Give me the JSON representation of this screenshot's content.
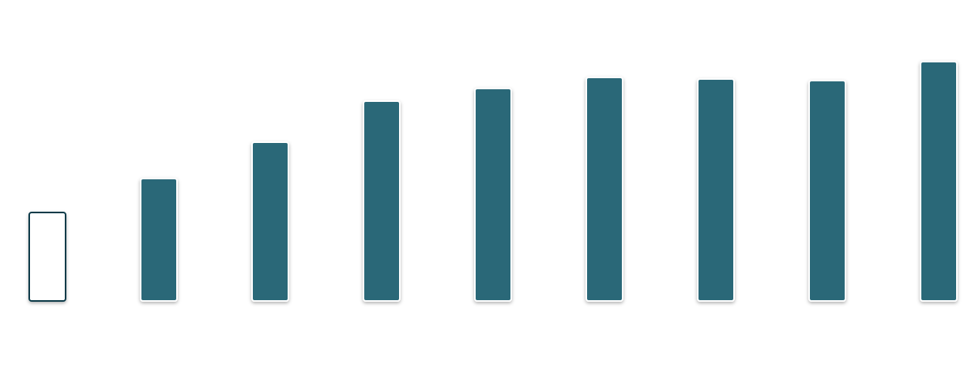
{
  "chart_data": {
    "type": "bar",
    "values": [
      112,
      155,
      201,
      253,
      269,
      283,
      281,
      279,
      303
    ],
    "colors": [
      "#ffffff",
      "#2a6878",
      "#2a6878",
      "#2a6878",
      "#2a6878",
      "#2a6878",
      "#2a6878",
      "#2a6878",
      "#2a6878"
    ],
    "strokes": [
      "#0d3b4a",
      "#ffffff",
      "#ffffff",
      "#ffffff",
      "#ffffff",
      "#ffffff",
      "#ffffff",
      "#ffffff",
      "#ffffff"
    ],
    "ylim": [
      0,
      381
    ]
  }
}
